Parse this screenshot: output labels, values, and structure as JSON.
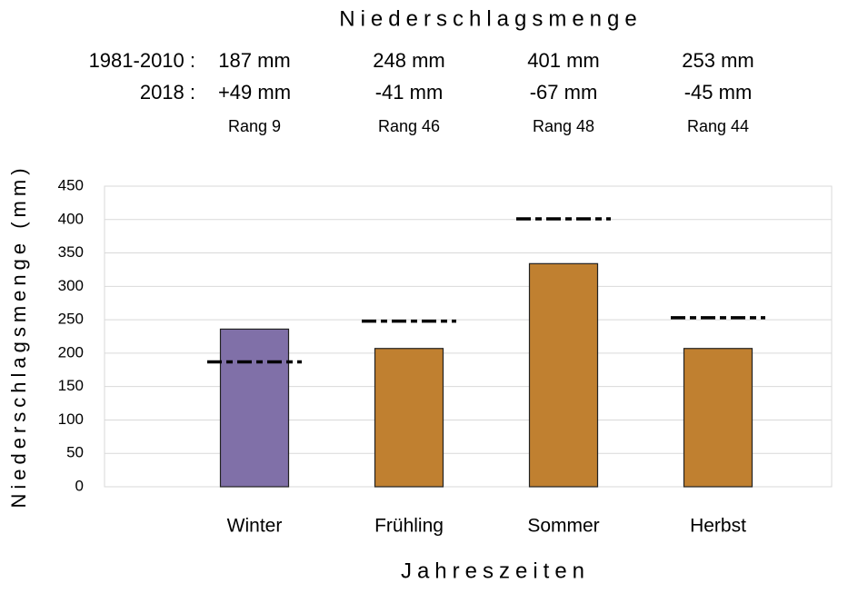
{
  "chart_data": {
    "type": "bar",
    "title": "Niederschlagsmenge",
    "y_label": "Niederschlagsmenge (mm)",
    "x_label": "Jahreszeiten",
    "categories": [
      "Winter",
      "Frühling",
      "Sommer",
      "Herbst"
    ],
    "values": [
      236,
      207,
      334,
      207
    ],
    "colors": [
      "#8070a8",
      "#c08030",
      "#c08030",
      "#c08030"
    ],
    "reference_values": [
      187,
      248,
      401,
      253
    ],
    "reference_color": "#000000",
    "annotation_rows": [
      {
        "label": "1981-2010 :",
        "texts": [
          "187 mm",
          "248 mm",
          "401 mm",
          "253 mm"
        ]
      },
      {
        "label": "2018 :",
        "texts": [
          "+49 mm",
          "-41 mm",
          "-67 mm",
          "-45 mm"
        ]
      },
      {
        "texts": [
          "Rang 9",
          "Rang 46",
          "Rang 48",
          "Rang 44"
        ]
      }
    ],
    "ylim": [
      0,
      450
    ],
    "yticks": [
      0,
      50,
      100,
      150,
      200,
      250,
      300,
      350,
      400,
      450
    ],
    "grid": true
  }
}
